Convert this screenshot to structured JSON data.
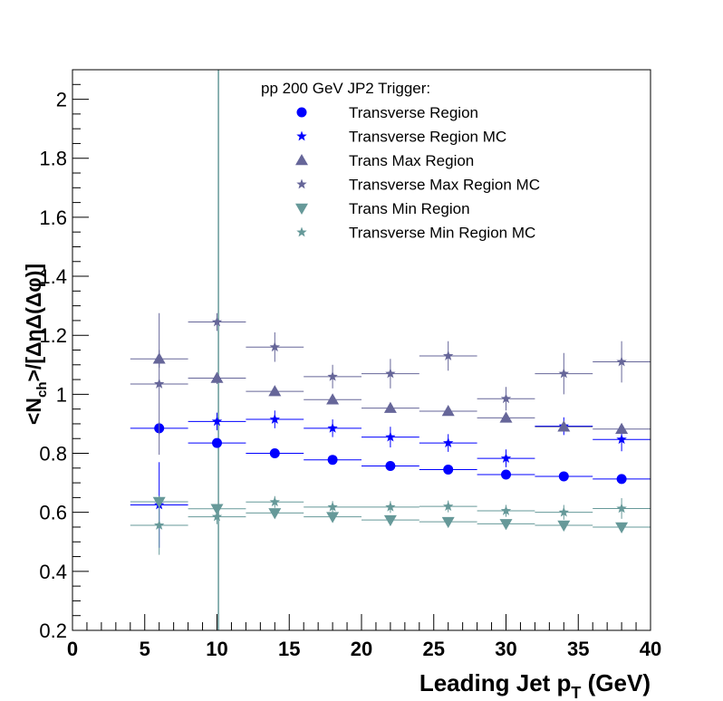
{
  "chart_data": {
    "type": "scatter",
    "title": "",
    "xlabel": "Leading Jet p",
    "xlabel_sub": "T",
    "xlabel_suffix": " (GeV)",
    "ylabel": "<N_ch>/[ΔηΔ(Δφ)]",
    "xlim": [
      0,
      40
    ],
    "ylim": [
      0.2,
      2.1
    ],
    "x_ticks": [
      "0",
      "5",
      "10",
      "15",
      "20",
      "25",
      "30",
      "35",
      "40"
    ],
    "y_ticks": [
      "0.2",
      "0.4",
      "0.6",
      "0.8",
      "1",
      "1.2",
      "1.4",
      "1.6",
      "1.8",
      "2"
    ],
    "legend_header": "pp 200 GeV JP2 Trigger:",
    "legend_position": "top-center",
    "grid": false,
    "vertical_line_x": 10.1,
    "series": [
      {
        "name": "Transverse Region",
        "marker": "circle",
        "color": "#0000ff",
        "points": [
          {
            "x": 6,
            "y": 0.885,
            "xerr": 2,
            "yerr": 0.02
          },
          {
            "x": 10,
            "y": 0.835,
            "xerr": 2,
            "yerr": 0.015
          },
          {
            "x": 14,
            "y": 0.8,
            "xerr": 2,
            "yerr": 0.01
          },
          {
            "x": 18,
            "y": 0.778,
            "xerr": 2,
            "yerr": 0.008
          },
          {
            "x": 22,
            "y": 0.757,
            "xerr": 2,
            "yerr": 0.008
          },
          {
            "x": 26,
            "y": 0.745,
            "xerr": 2,
            "yerr": 0.008
          },
          {
            "x": 30,
            "y": 0.728,
            "xerr": 2,
            "yerr": 0.008
          },
          {
            "x": 34,
            "y": 0.722,
            "xerr": 2,
            "yerr": 0.008
          },
          {
            "x": 38,
            "y": 0.713,
            "xerr": 2,
            "yerr": 0.008
          }
        ]
      },
      {
        "name": "Transverse Region MC",
        "marker": "star",
        "color": "#0000ff",
        "points": [
          {
            "x": 6,
            "y": 0.625,
            "xerr": 2,
            "yerr": 0.145
          },
          {
            "x": 10,
            "y": 0.908,
            "xerr": 2,
            "yerr": 0.03
          },
          {
            "x": 14,
            "y": 0.915,
            "xerr": 2,
            "yerr": 0.03
          },
          {
            "x": 18,
            "y": 0.885,
            "xerr": 2,
            "yerr": 0.03
          },
          {
            "x": 22,
            "y": 0.855,
            "xerr": 2,
            "yerr": 0.035
          },
          {
            "x": 26,
            "y": 0.835,
            "xerr": 2,
            "yerr": 0.03
          },
          {
            "x": 30,
            "y": 0.783,
            "xerr": 2,
            "yerr": 0.03
          },
          {
            "x": 34,
            "y": 0.892,
            "xerr": 2,
            "yerr": 0.03
          },
          {
            "x": 38,
            "y": 0.847,
            "xerr": 2,
            "yerr": 0.04
          }
        ]
      },
      {
        "name": "Trans Max Region",
        "marker": "triangle-up",
        "color": "#666699",
        "points": [
          {
            "x": 6,
            "y": 1.12,
            "xerr": 2,
            "yerr": 0.03
          },
          {
            "x": 10,
            "y": 1.055,
            "xerr": 2,
            "yerr": 0.02
          },
          {
            "x": 14,
            "y": 1.01,
            "xerr": 2,
            "yerr": 0.015
          },
          {
            "x": 18,
            "y": 0.982,
            "xerr": 2,
            "yerr": 0.012
          },
          {
            "x": 22,
            "y": 0.953,
            "xerr": 2,
            "yerr": 0.012
          },
          {
            "x": 26,
            "y": 0.943,
            "xerr": 2,
            "yerr": 0.012
          },
          {
            "x": 30,
            "y": 0.92,
            "xerr": 2,
            "yerr": 0.012
          },
          {
            "x": 34,
            "y": 0.89,
            "xerr": 2,
            "yerr": 0.012
          },
          {
            "x": 38,
            "y": 0.882,
            "xerr": 2,
            "yerr": 0.012
          }
        ]
      },
      {
        "name": "Transverse Max Region MC",
        "marker": "star",
        "color": "#666699",
        "points": [
          {
            "x": 6,
            "y": 1.035,
            "xerr": 2,
            "yerr": 0.24
          },
          {
            "x": 10,
            "y": 1.245,
            "xerr": 2,
            "yerr": 0.03
          },
          {
            "x": 14,
            "y": 1.16,
            "xerr": 2,
            "yerr": 0.05
          },
          {
            "x": 18,
            "y": 1.06,
            "xerr": 2,
            "yerr": 0.04
          },
          {
            "x": 22,
            "y": 1.07,
            "xerr": 2,
            "yerr": 0.05
          },
          {
            "x": 26,
            "y": 1.13,
            "xerr": 2,
            "yerr": 0.05
          },
          {
            "x": 30,
            "y": 0.985,
            "xerr": 2,
            "yerr": 0.04
          },
          {
            "x": 34,
            "y": 1.07,
            "xerr": 2,
            "yerr": 0.07
          },
          {
            "x": 38,
            "y": 1.11,
            "xerr": 2,
            "yerr": 0.07
          }
        ]
      },
      {
        "name": "Trans Min Region",
        "marker": "triangle-down",
        "color": "#669999",
        "points": [
          {
            "x": 6,
            "y": 0.636,
            "xerr": 2,
            "yerr": 0.015
          },
          {
            "x": 10,
            "y": 0.612,
            "xerr": 2,
            "yerr": 0.012
          },
          {
            "x": 14,
            "y": 0.598,
            "xerr": 2,
            "yerr": 0.01
          },
          {
            "x": 18,
            "y": 0.585,
            "xerr": 2,
            "yerr": 0.008
          },
          {
            "x": 22,
            "y": 0.574,
            "xerr": 2,
            "yerr": 0.008
          },
          {
            "x": 26,
            "y": 0.568,
            "xerr": 2,
            "yerr": 0.008
          },
          {
            "x": 30,
            "y": 0.561,
            "xerr": 2,
            "yerr": 0.008
          },
          {
            "x": 34,
            "y": 0.556,
            "xerr": 2,
            "yerr": 0.008
          },
          {
            "x": 38,
            "y": 0.55,
            "xerr": 2,
            "yerr": 0.008
          }
        ]
      },
      {
        "name": "Transverse Min Region MC",
        "marker": "star",
        "color": "#669999",
        "points": [
          {
            "x": 6,
            "y": 0.556,
            "xerr": 2,
            "yerr": 0.1
          },
          {
            "x": 10,
            "y": 0.585,
            "xerr": 2,
            "yerr": 0.025
          },
          {
            "x": 14,
            "y": 0.635,
            "xerr": 2,
            "yerr": 0.02
          },
          {
            "x": 18,
            "y": 0.618,
            "xerr": 2,
            "yerr": 0.02
          },
          {
            "x": 22,
            "y": 0.618,
            "xerr": 2,
            "yerr": 0.02
          },
          {
            "x": 26,
            "y": 0.62,
            "xerr": 2,
            "yerr": 0.02
          },
          {
            "x": 30,
            "y": 0.605,
            "xerr": 2,
            "yerr": 0.02
          },
          {
            "x": 34,
            "y": 0.6,
            "xerr": 2,
            "yerr": 0.025
          },
          {
            "x": 38,
            "y": 0.613,
            "xerr": 2,
            "yerr": 0.035
          }
        ]
      }
    ]
  }
}
